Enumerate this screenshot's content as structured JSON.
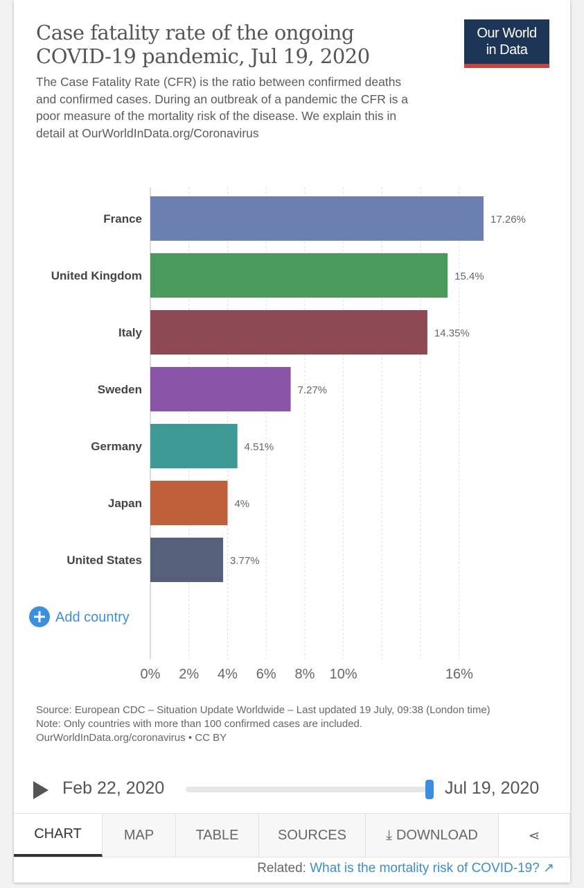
{
  "header": {
    "title": "Case fatality rate of the ongoing COVID-19 pandemic, Jul 19, 2020",
    "subtitle": "The Case Fatality Rate (CFR) is the ratio between confirmed deaths and confirmed cases. During an outbreak of a pandemic the CFR is a poor measure of the mortality risk of the disease. We explain this in detail at OurWorldInData.org/Coronavirus",
    "logo_line1": "Our World",
    "logo_line2": "in Data"
  },
  "chart_data": {
    "type": "bar",
    "orientation": "horizontal",
    "title": "Case fatality rate of the ongoing COVID-19 pandemic, Jul 19, 2020",
    "categories": [
      "France",
      "United Kingdom",
      "Italy",
      "Sweden",
      "Germany",
      "Japan",
      "United States"
    ],
    "values": [
      17.26,
      15.4,
      14.35,
      7.27,
      4.51,
      4,
      3.77
    ],
    "value_labels": [
      "17.26%",
      "15.4%",
      "14.35%",
      "7.27%",
      "4.51%",
      "4%",
      "3.77%"
    ],
    "colors": [
      "#6b7fb0",
      "#4a9a5c",
      "#8d4a55",
      "#8a55a8",
      "#3d9a94",
      "#c0603a",
      "#56607a"
    ],
    "xlim": [
      0,
      17.26
    ],
    "x_ticks": [
      0,
      2,
      4,
      6,
      8,
      10,
      16
    ],
    "x_tick_labels": [
      "0%",
      "2%",
      "4%",
      "6%",
      "8%",
      "10%",
      "16%"
    ],
    "gridlines": [
      0,
      2,
      4,
      6,
      8,
      10,
      12,
      14,
      16
    ],
    "xlabel": "",
    "ylabel": ""
  },
  "add_country_label": "Add country",
  "notes": {
    "source": "Source: European CDC – Situation Update Worldwide – Last updated 19 July, 09:38 (London time)",
    "note": "Note: Only countries with more than 100 confirmed cases are included.",
    "license": "OurWorldInData.org/coronavirus • CC BY"
  },
  "timeline": {
    "start": "Feb 22, 2020",
    "end": "Jul 19, 2020",
    "position": 1.0
  },
  "tabs": [
    "CHART",
    "MAP",
    "TABLE",
    "SOURCES",
    "DOWNLOAD"
  ],
  "related": {
    "label": "Related:",
    "link": "What is the mortality risk of COVID-19?"
  }
}
